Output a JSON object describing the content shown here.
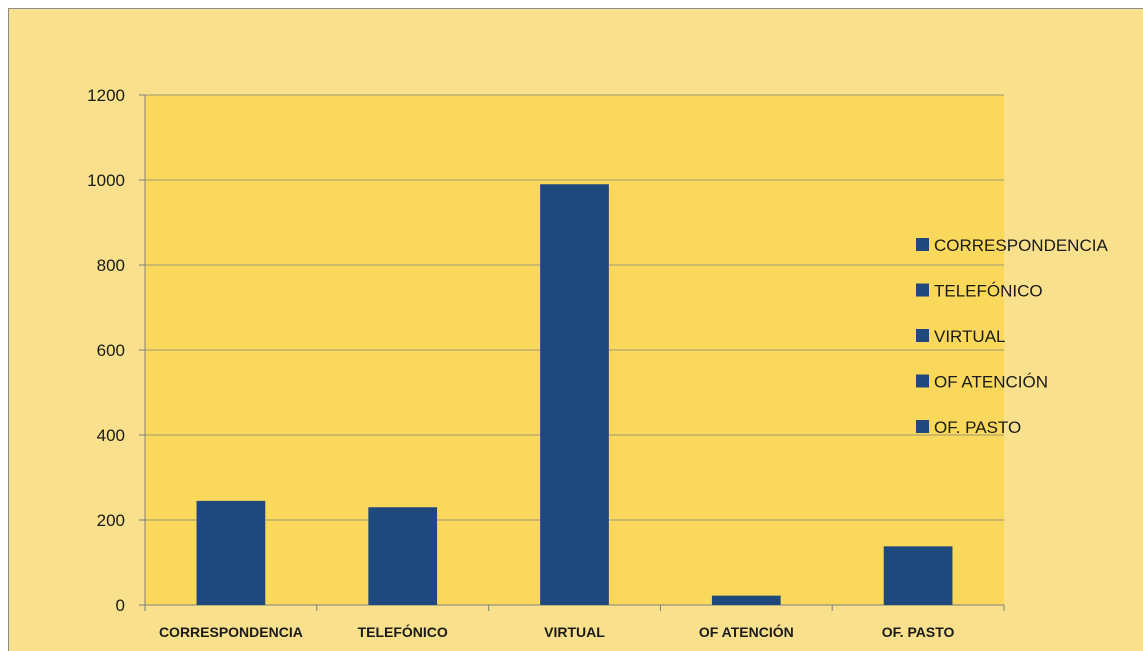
{
  "chart_data": {
    "type": "bar",
    "title": "",
    "xlabel": "",
    "ylabel": "",
    "categories": [
      "CORRESPONDENCIA",
      "TELEFÓNICO",
      "VIRTUAL",
      "OF ATENCIÓN",
      "OF. PASTO"
    ],
    "values": [
      245,
      230,
      990,
      22,
      138
    ],
    "ylim": [
      0,
      1200
    ],
    "yticks": [
      0,
      200,
      400,
      600,
      800,
      1000,
      1200
    ],
    "grid": true,
    "legend": {
      "position": "right",
      "entries": [
        "CORRESPONDENCIA",
        "TELEFÓNICO",
        "VIRTUAL",
        "OF ATENCIÓN",
        "OF. PASTO"
      ]
    },
    "colors": {
      "bar": "#1f497d",
      "plot_background": "#f9d85c",
      "chart_background": "#f8e08c",
      "gridline": "#a09870"
    }
  }
}
